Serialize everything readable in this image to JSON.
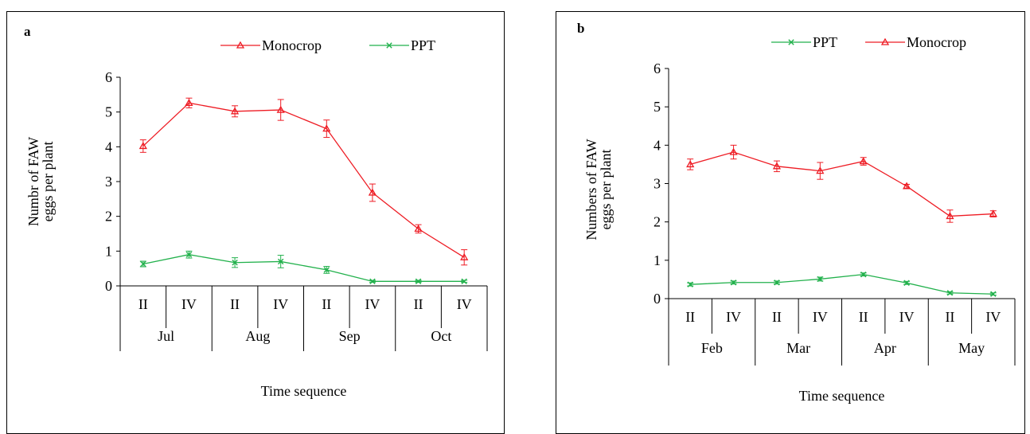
{
  "colors": {
    "monocrop": "#ee1c24",
    "ppt": "#22b14c",
    "axis": "#000000"
  },
  "chart_data": [
    {
      "panel_label": "a",
      "type": "line",
      "xlabel": "Time sequence",
      "ylabel_line1": "Numbr of FAW",
      "ylabel_line2": "eggs per plant",
      "ylim": [
        0,
        6
      ],
      "yticks": [
        "0",
        "1",
        "2",
        "3",
        "4",
        "5",
        "6"
      ],
      "categories": [
        "II",
        "IV",
        "II",
        "IV",
        "II",
        "IV",
        "II",
        "IV"
      ],
      "groups": [
        "Jul",
        "Aug",
        "Sep",
        "Oct"
      ],
      "legend_order": [
        "Monocrop",
        "PPT"
      ],
      "series": [
        {
          "name": "Monocrop",
          "marker": "triangle",
          "values": [
            4.02,
            5.26,
            5.02,
            5.06,
            4.52,
            2.68,
            1.64,
            0.82
          ],
          "errors": [
            0.18,
            0.14,
            0.16,
            0.3,
            0.25,
            0.25,
            0.12,
            0.22
          ]
        },
        {
          "name": "PPT",
          "marker": "x",
          "values": [
            0.63,
            0.9,
            0.67,
            0.7,
            0.46,
            0.13,
            0.13,
            0.13
          ],
          "errors": [
            0.08,
            0.1,
            0.14,
            0.18,
            0.1,
            0.03,
            0.03,
            0.03
          ]
        }
      ]
    },
    {
      "panel_label": "b",
      "type": "line",
      "xlabel": "Time sequence",
      "ylabel_line1": "Numbers of FAW",
      "ylabel_line2": "eggs per plant",
      "ylim": [
        0,
        6
      ],
      "yticks": [
        "0",
        "1",
        "2",
        "3",
        "4",
        "5",
        "6"
      ],
      "categories": [
        "II",
        "IV",
        "II",
        "IV",
        "II",
        "IV",
        "II",
        "IV"
      ],
      "groups": [
        "Feb",
        "Mar",
        "Apr",
        "May"
      ],
      "legend_order": [
        "PPT",
        "Monocrop"
      ],
      "series": [
        {
          "name": "Monocrop",
          "marker": "triangle",
          "values": [
            3.5,
            3.82,
            3.45,
            3.33,
            3.58,
            2.93,
            2.15,
            2.21
          ],
          "errors": [
            0.14,
            0.18,
            0.14,
            0.22,
            0.1,
            0.05,
            0.16,
            0.08
          ]
        },
        {
          "name": "PPT",
          "marker": "x",
          "values": [
            0.37,
            0.42,
            0.42,
            0.51,
            0.63,
            0.41,
            0.15,
            0.12
          ],
          "errors": [
            0.04,
            0.04,
            0.04,
            0.05,
            0.04,
            0.04,
            0.03,
            0.03
          ]
        }
      ]
    }
  ]
}
